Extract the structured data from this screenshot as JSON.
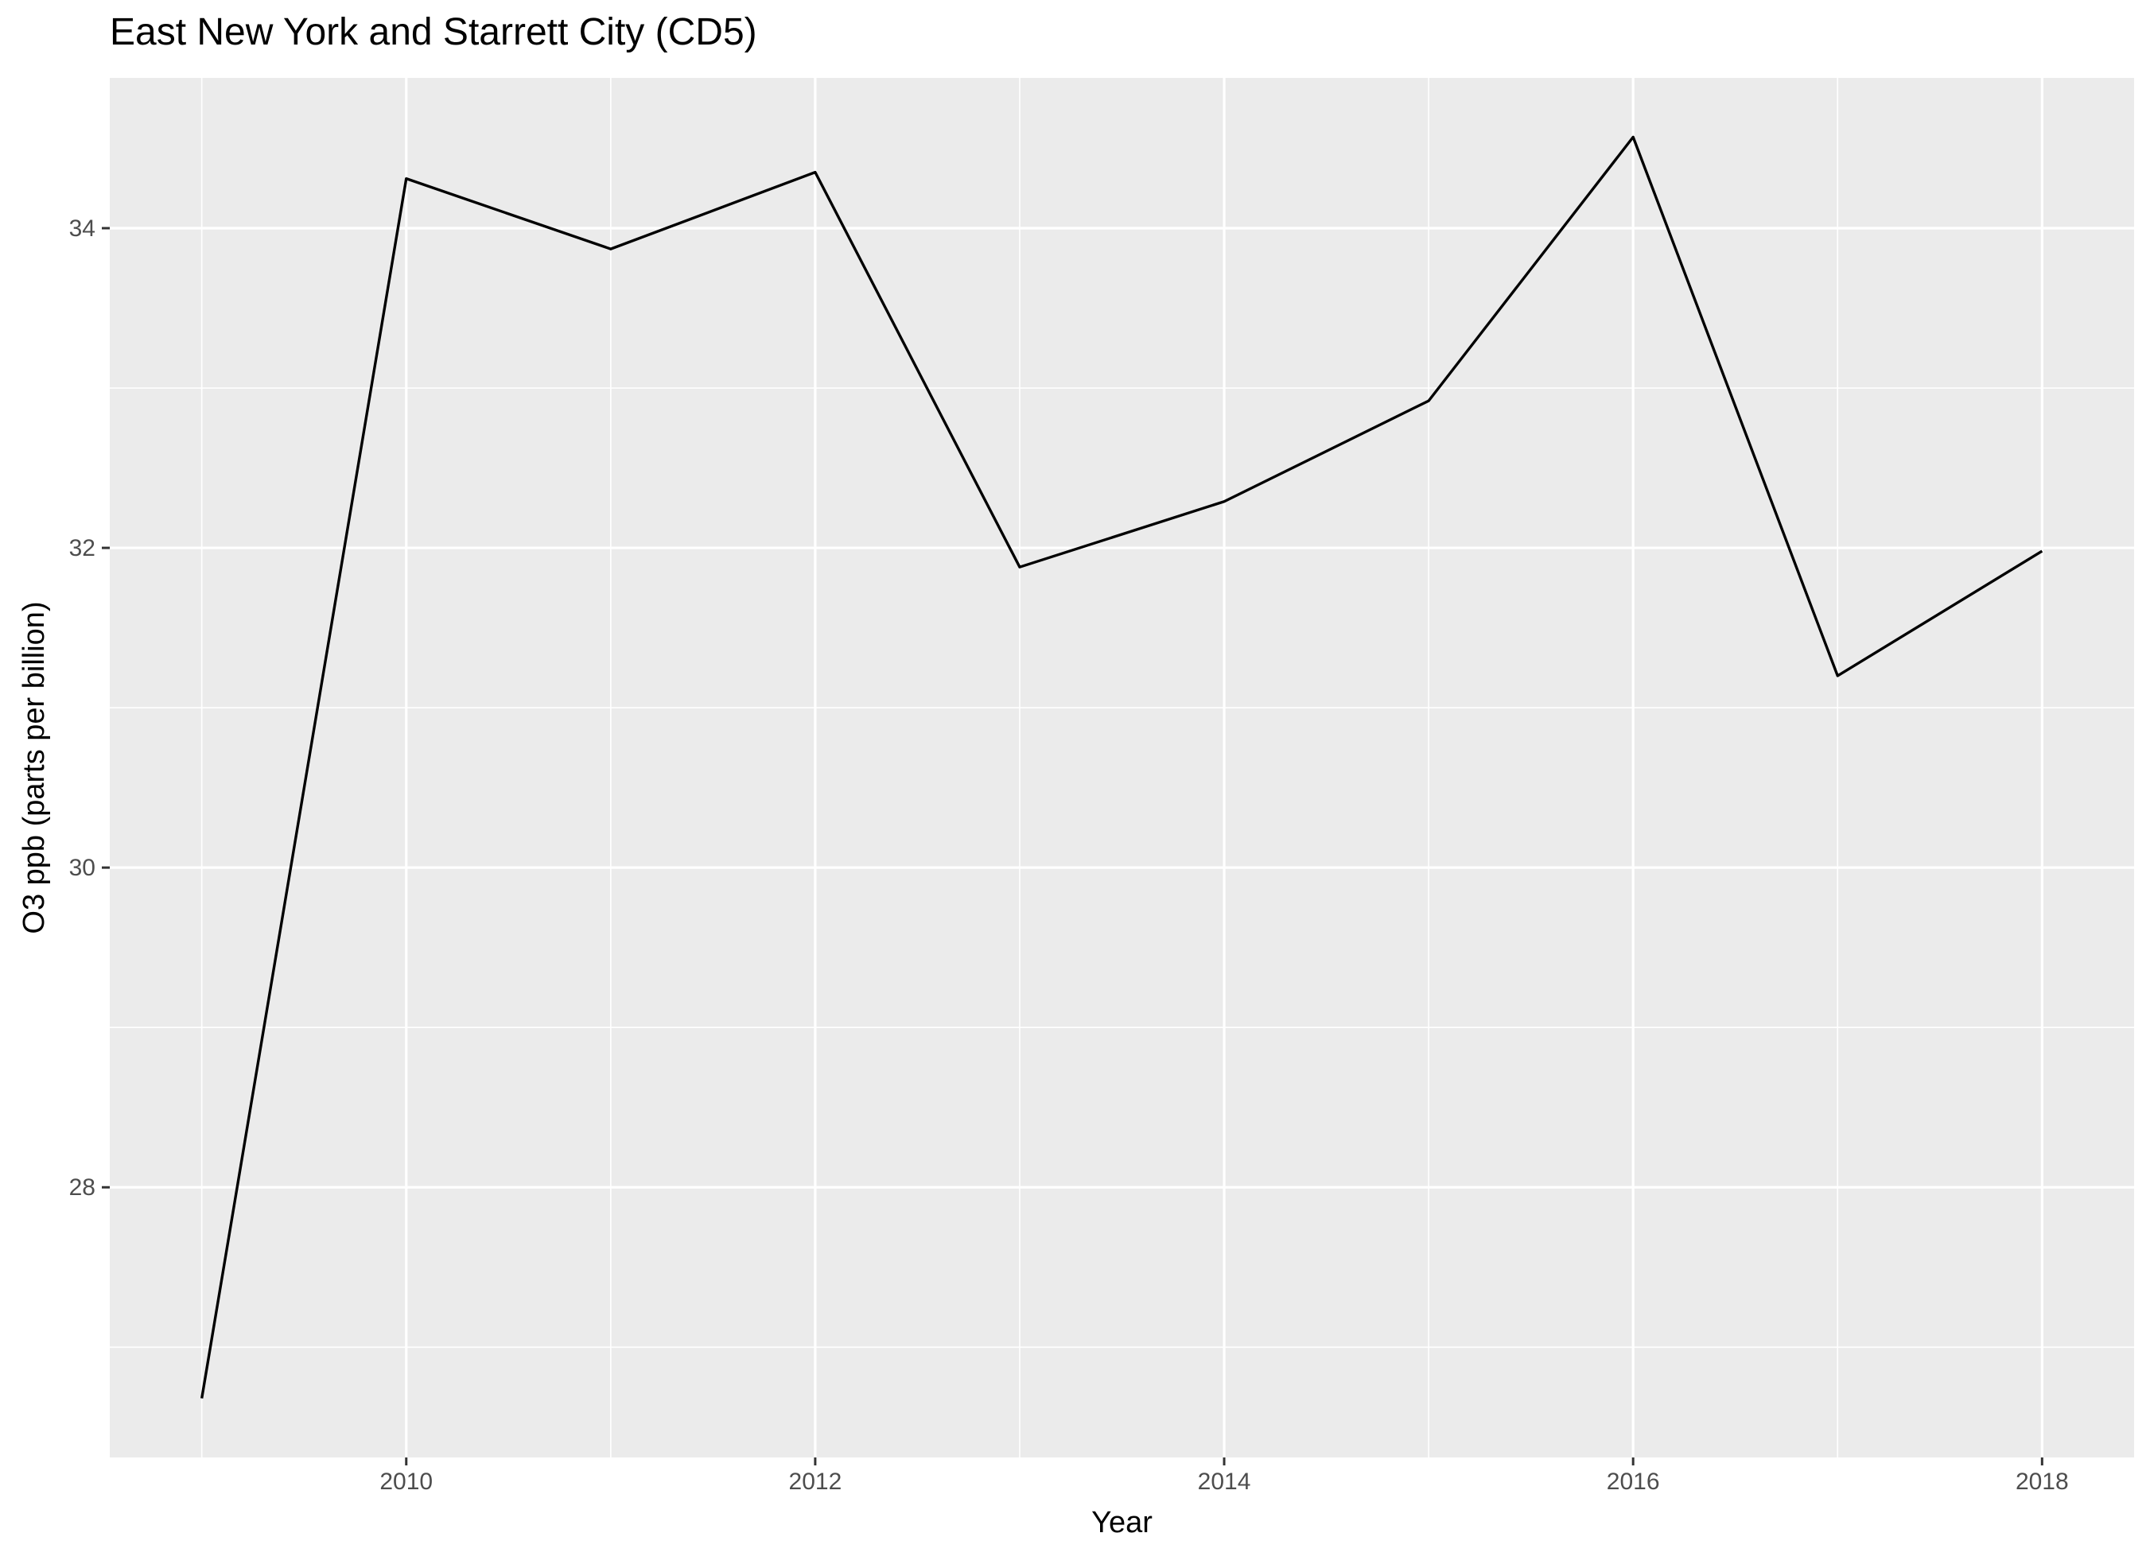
{
  "chart_data": {
    "type": "line",
    "title": "East New York and Starrett City (CD5)",
    "xlabel": "Year",
    "ylabel": "O3 ppb (parts per billion)",
    "x": [
      2009,
      2010,
      2011,
      2012,
      2013,
      2014,
      2015,
      2016,
      2017,
      2018
    ],
    "series": [
      {
        "values": [
          26.68,
          34.31,
          33.87,
          34.35,
          31.88,
          32.29,
          32.92,
          34.57,
          31.2,
          31.98
        ]
      }
    ],
    "x_ticks": [
      2010,
      2012,
      2014,
      2016,
      2018
    ],
    "x_minor_ticks": [
      2009,
      2011,
      2013,
      2015,
      2017
    ],
    "y_ticks": [
      28,
      30,
      32,
      34
    ],
    "y_minor_ticks": [
      27,
      29,
      31,
      33
    ],
    "xlim": [
      2008.55,
      2018.45
    ],
    "ylim": [
      26.31,
      34.94
    ],
    "grid": true,
    "colors": {
      "panel_background": "#EBEBEB",
      "grid": "#FFFFFF",
      "line": "#000000",
      "tick_label": "#4D4D4D",
      "axis_title": "#000000"
    }
  }
}
